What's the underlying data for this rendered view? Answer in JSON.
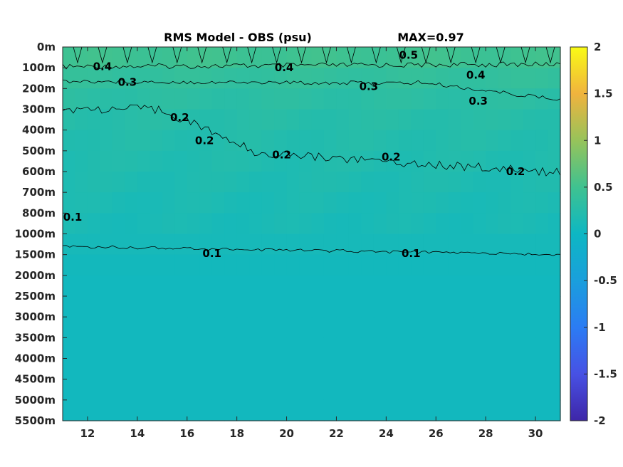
{
  "chart_data": {
    "type": "heatmap",
    "title": "RMS Model - OBS (psu)",
    "annotation": "MAX=0.97",
    "xlabel": "",
    "ylabel": "",
    "xlim": [
      11,
      31
    ],
    "x_ticks": [
      "12",
      "14",
      "16",
      "18",
      "20",
      "22",
      "24",
      "26",
      "28",
      "30"
    ],
    "y_ticks": [
      "0m",
      "100m",
      "200m",
      "300m",
      "400m",
      "500m",
      "600m",
      "700m",
      "800m",
      "1000m",
      "1500m",
      "2000m",
      "2500m",
      "3000m",
      "3500m",
      "4000m",
      "4500m",
      "5000m",
      "5500m"
    ],
    "colorbar": {
      "range": [
        -2,
        2
      ],
      "ticks": [
        "2",
        "1.5",
        "1",
        "0.5",
        "0",
        "-0.5",
        "-1",
        "-1.5",
        "-2"
      ],
      "colormap": "parula"
    },
    "depth_profile": {
      "depths": [
        "0m",
        "100m",
        "200m",
        "300m",
        "400m",
        "500m",
        "600m",
        "700m",
        "800m",
        "1000m",
        "1500m",
        "2000m",
        "2500m",
        "3000m",
        "3500m",
        "4000m",
        "4500m",
        "5000m",
        "5500m"
      ],
      "rms_values": [
        0.55,
        0.42,
        0.33,
        0.28,
        0.24,
        0.21,
        0.19,
        0.16,
        0.14,
        0.12,
        0.08,
        0.05,
        0.05,
        0.05,
        0.05,
        0.05,
        0.05,
        0.05,
        0.05
      ]
    },
    "contour_labels": [
      {
        "text": "0.4",
        "x": 12.6,
        "depth_index": 0.95
      },
      {
        "text": "0.4",
        "x": 19.9,
        "depth_index": 1.0
      },
      {
        "text": "0.5",
        "x": 24.9,
        "depth_index": 0.4
      },
      {
        "text": "0.4",
        "x": 27.6,
        "depth_index": 1.35
      },
      {
        "text": "0.3",
        "x": 13.6,
        "depth_index": 1.7
      },
      {
        "text": "0.3",
        "x": 23.3,
        "depth_index": 1.9
      },
      {
        "text": "0.3",
        "x": 27.7,
        "depth_index": 2.6
      },
      {
        "text": "0.2",
        "x": 15.7,
        "depth_index": 3.4
      },
      {
        "text": "0.2",
        "x": 16.7,
        "depth_index": 4.5
      },
      {
        "text": "0.2",
        "x": 19.8,
        "depth_index": 5.2
      },
      {
        "text": "0.2",
        "x": 24.2,
        "depth_index": 5.3
      },
      {
        "text": "0.2",
        "x": 29.2,
        "depth_index": 6.0
      },
      {
        "text": "0.1",
        "x": 11.4,
        "depth_index": 8.2
      },
      {
        "text": "0.1",
        "x": 17.0,
        "depth_index": 9.95
      },
      {
        "text": "0.1",
        "x": 25.0,
        "depth_index": 9.95
      }
    ]
  }
}
